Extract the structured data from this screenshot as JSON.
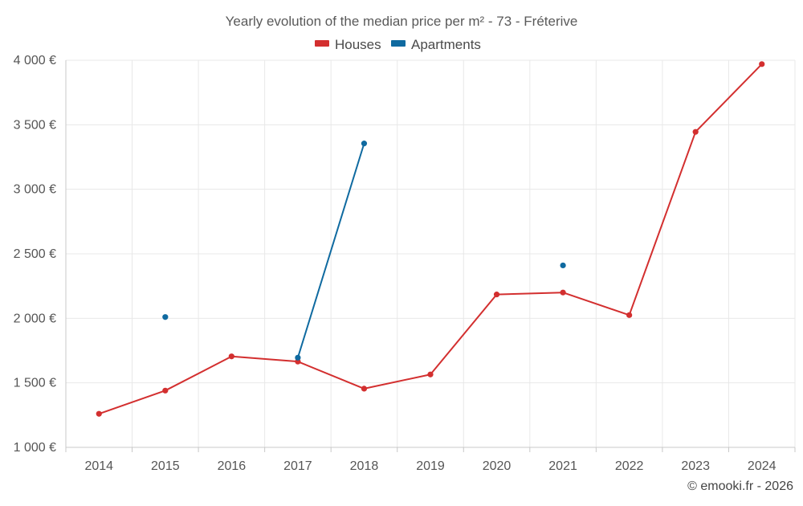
{
  "chart_data": {
    "type": "line",
    "title": "Yearly evolution of the median price per m² - 73 - Fréterive",
    "categories": [
      "2014",
      "2015",
      "2016",
      "2017",
      "2018",
      "2019",
      "2020",
      "2021",
      "2022",
      "2023",
      "2024"
    ],
    "ylim": [
      1000,
      4000
    ],
    "yticks": [
      1000,
      1500,
      2000,
      2500,
      3000,
      3500,
      4000
    ],
    "ytick_labels": [
      "1 000 €",
      "1 500 €",
      "2 000 €",
      "2 500 €",
      "3 000 €",
      "3 500 €",
      "4 000 €"
    ],
    "grid": true,
    "legend_position": "top-center",
    "series": [
      {
        "name": "Houses",
        "color": "#d32f2f",
        "values": [
          1260,
          1440,
          1705,
          1665,
          1455,
          1565,
          2185,
          2200,
          2025,
          3445,
          3970
        ]
      },
      {
        "name": "Apartments",
        "color": "#0f6aa0",
        "values": [
          null,
          2010,
          null,
          1695,
          3355,
          null,
          null,
          2410,
          null,
          null,
          null
        ]
      }
    ]
  },
  "credit": "© emooki.fr - 2026"
}
